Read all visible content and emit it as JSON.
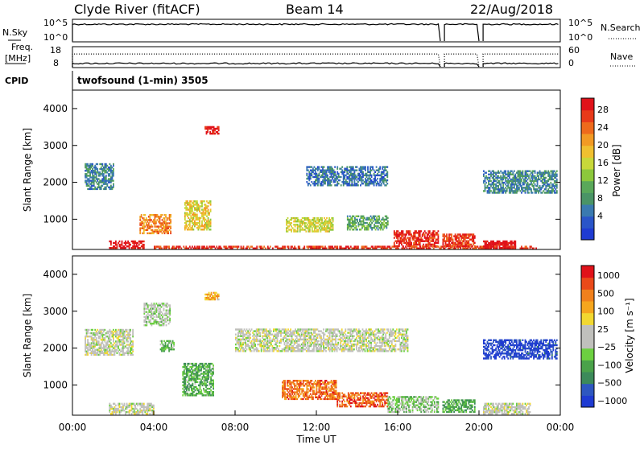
{
  "header": {
    "station": "Clyde River (fitACF)",
    "beam": "Beam 14",
    "date": "22/Aug/2018"
  },
  "panel_labels": {
    "nsky": "N.Sky",
    "nsearch": "N.Search",
    "freq_line1": "Freq.",
    "freq_line2": "[MHz]",
    "nave": "Nave",
    "cpid": "CPID",
    "cpid_value": "twofsound (1-min) 3505"
  },
  "chart_data": [
    {
      "type": "line",
      "name": "noise-panel",
      "ylabels_left": [
        "10^5",
        "10^0"
      ],
      "ylabels_right": [
        "10^5",
        "10^0"
      ],
      "data_gaps_hours": [
        [
          18.0,
          18.2
        ],
        [
          20.0,
          20.2
        ]
      ],
      "series": [
        {
          "name": "N.Sky",
          "style": "solid",
          "level": 0.22
        }
      ]
    },
    {
      "type": "line",
      "name": "freq-panel",
      "ylabels_left": [
        "18",
        "8"
      ],
      "ylabels_right": [
        "60",
        "0"
      ],
      "data_gaps_hours": [
        [
          18.0,
          18.2
        ],
        [
          20.0,
          20.2
        ]
      ],
      "series": [
        {
          "name": "Nave",
          "style": "dotted",
          "level": 0.35
        },
        {
          "name": "Freq.",
          "style": "solid",
          "level": 0.8
        }
      ]
    },
    {
      "type": "heatmap",
      "name": "power",
      "ylabel": "Slant Range [km]",
      "yticks": [
        1000,
        2000,
        3000,
        4000
      ],
      "ylim": [
        180,
        4500
      ],
      "xlim_hours": [
        0,
        24
      ],
      "colorbar": {
        "label": "Power [dB]",
        "ticks": [
          "4",
          "8",
          "12",
          "16",
          "20",
          "24",
          "28"
        ],
        "colors": [
          "#1f3bd2",
          "#2a55c8",
          "#3a7ab0",
          "#4a9466",
          "#5aa85a",
          "#8cc83c",
          "#c8d83a",
          "#f0c030",
          "#f29a24",
          "#ee6a1c",
          "#e83a1a",
          "#e0121a"
        ]
      },
      "regions": [
        {
          "t0": 4.0,
          "t1": 22.8,
          "r0": 190,
          "r1": 260,
          "v": 0.9
        },
        {
          "t0": 1.8,
          "t1": 3.5,
          "r0": 200,
          "r1": 420,
          "v": 1.0
        },
        {
          "t0": 15.8,
          "t1": 18.0,
          "r0": 250,
          "r1": 700,
          "v": 0.92
        },
        {
          "t0": 18.2,
          "t1": 19.8,
          "r0": 250,
          "r1": 600,
          "v": 0.88
        },
        {
          "t0": 20.2,
          "t1": 21.8,
          "r0": 200,
          "r1": 420,
          "v": 1.0
        },
        {
          "t0": 3.3,
          "t1": 4.8,
          "r0": 600,
          "r1": 1100,
          "v": 0.75
        },
        {
          "t0": 5.5,
          "t1": 6.8,
          "r0": 700,
          "r1": 1500,
          "v": 0.6
        },
        {
          "t0": 6.5,
          "t1": 7.2,
          "r0": 3300,
          "r1": 3500,
          "v": 0.98
        },
        {
          "t0": 10.5,
          "t1": 12.8,
          "r0": 650,
          "r1": 1050,
          "v": 0.55
        },
        {
          "t0": 0.6,
          "t1": 2.0,
          "r0": 1800,
          "r1": 2500,
          "v": 0.25
        },
        {
          "t0": 11.5,
          "t1": 15.5,
          "r0": 1900,
          "r1": 2400,
          "v": 0.2
        },
        {
          "t0": 20.2,
          "t1": 23.8,
          "r0": 1700,
          "r1": 2300,
          "v": 0.25
        },
        {
          "t0": 13.5,
          "t1": 15.5,
          "r0": 700,
          "r1": 1100,
          "v": 0.35
        }
      ]
    },
    {
      "type": "heatmap",
      "name": "velocity",
      "ylabel": "Slant Range [km]",
      "yticks": [
        1000,
        2000,
        3000,
        4000
      ],
      "ylim": [
        180,
        4500
      ],
      "xlim_hours": [
        0,
        24
      ],
      "xticks": [
        "00:00",
        "04:00",
        "08:00",
        "12:00",
        "16:00",
        "20:00",
        "00:00"
      ],
      "xlabel": "Time UT",
      "colorbar": {
        "label": "Velocity [m s⁻¹]",
        "ticks": [
          "1000",
          "500",
          "100",
          "25",
          "−25",
          "−100",
          "−500",
          "−1000"
        ],
        "colors": [
          "#1f3bd2",
          "#2e57c0",
          "#3c8a5a",
          "#4aa24a",
          "#6cd040",
          "#c0c0bc",
          "#c0c0bc",
          "#f2d830",
          "#f5a61e",
          "#f0801c",
          "#ea4a1a",
          "#e0121a"
        ]
      },
      "regions": [
        {
          "t0": 5.4,
          "t1": 6.9,
          "r0": 700,
          "r1": 1600,
          "v": 0.3
        },
        {
          "t0": 4.3,
          "t1": 5.0,
          "r0": 1900,
          "r1": 2200,
          "v": 0.35
        },
        {
          "t0": 10.3,
          "t1": 13.0,
          "r0": 600,
          "r1": 1100,
          "v": 0.82
        },
        {
          "t0": 13.0,
          "t1": 15.5,
          "r0": 400,
          "r1": 800,
          "v": 0.85
        },
        {
          "t0": 20.2,
          "t1": 23.8,
          "r0": 1700,
          "r1": 2200,
          "v": 0.05
        },
        {
          "t0": 0.6,
          "t1": 3.0,
          "r0": 1800,
          "r1": 2500,
          "v": 0.5
        },
        {
          "t0": 8.0,
          "t1": 16.5,
          "r0": 1900,
          "r1": 2500,
          "v": 0.5
        },
        {
          "t0": 15.5,
          "t1": 18.0,
          "r0": 250,
          "r1": 700,
          "v": 0.4
        },
        {
          "t0": 18.2,
          "t1": 19.8,
          "r0": 250,
          "r1": 600,
          "v": 0.3
        },
        {
          "t0": 20.2,
          "t1": 22.5,
          "r0": 200,
          "r1": 500,
          "v": 0.5
        },
        {
          "t0": 1.8,
          "t1": 4.0,
          "r0": 200,
          "r1": 500,
          "v": 0.5
        },
        {
          "t0": 6.5,
          "t1": 7.2,
          "r0": 3300,
          "r1": 3500,
          "v": 0.7
        },
        {
          "t0": 3.5,
          "t1": 4.8,
          "r0": 2600,
          "r1": 3200,
          "v": 0.45
        }
      ]
    }
  ]
}
